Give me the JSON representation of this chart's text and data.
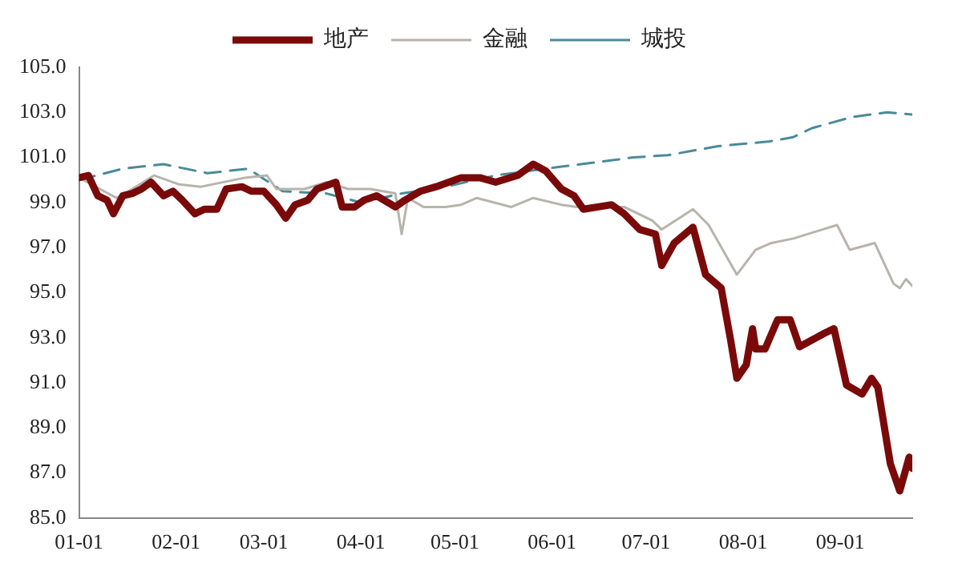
{
  "chart_data": {
    "type": "line",
    "legend": "top",
    "grid": false,
    "marker": "none",
    "xlim": [
      "--01-01",
      "--09-24"
    ],
    "xticks": [
      {
        "value": "--01-01",
        "label": "01-01"
      },
      {
        "value": "--02-01",
        "label": "02-01"
      },
      {
        "value": "--03-01",
        "label": "03-01"
      },
      {
        "value": "--04-01",
        "label": "04-01"
      },
      {
        "value": "--05-01",
        "label": "05-01"
      },
      {
        "value": "--06-01",
        "label": "06-01"
      },
      {
        "value": "--07-01",
        "label": "07-01"
      },
      {
        "value": "--08-01",
        "label": "08-01"
      },
      {
        "value": "--09-01",
        "label": "09-01"
      }
    ],
    "ylim": [
      85,
      105
    ],
    "yticks": [
      {
        "value": 85,
        "label": "85.0"
      },
      {
        "value": 87,
        "label": "87.0"
      },
      {
        "value": 89,
        "label": "89.0"
      },
      {
        "value": 91,
        "label": "91.0"
      },
      {
        "value": 93,
        "label": "93.0"
      },
      {
        "value": 95,
        "label": "95.0"
      },
      {
        "value": 97,
        "label": "97.0"
      },
      {
        "value": 99,
        "label": "99.0"
      },
      {
        "value": 101,
        "label": "101.0"
      },
      {
        "value": 103,
        "label": "103.0"
      },
      {
        "value": 105,
        "label": "105.0"
      }
    ],
    "series": [
      {
        "name": "地产",
        "color": "#7a0a0a",
        "line_style": "solid",
        "x": [
          "--01-01",
          "--01-04",
          "--01-07",
          "--01-10",
          "--01-12",
          "--01-15",
          "--01-18",
          "--01-21",
          "--01-24",
          "--01-28",
          "--01-31",
          "--02-03",
          "--02-07",
          "--02-10",
          "--02-14",
          "--02-17",
          "--02-22",
          "--02-25",
          "--03-01",
          "--03-05",
          "--03-08",
          "--03-11",
          "--03-15",
          "--03-18",
          "--03-22",
          "--03-24",
          "--03-26",
          "--03-30",
          "--04-02",
          "--04-06",
          "--04-12",
          "--04-15",
          "--04-20",
          "--04-25",
          "--05-01",
          "--05-03",
          "--05-09",
          "--05-14",
          "--05-21",
          "--05-26",
          "--05-30",
          "--06-04",
          "--06-08",
          "--06-11",
          "--06-20",
          "--06-24",
          "--06-29",
          "--07-04",
          "--07-06",
          "--07-10",
          "--07-16",
          "--07-20",
          "--07-25",
          "--07-28",
          "--07-30",
          "--08-02",
          "--08-04",
          "--08-05",
          "--08-08",
          "--08-12",
          "--08-16",
          "--08-19",
          "--08-23",
          "--08-27",
          "--08-30",
          "--09-03",
          "--09-08",
          "--09-11",
          "--09-13",
          "--09-17",
          "--09-20",
          "--09-23",
          "--09-24"
        ],
        "values": [
          100.1,
          100.2,
          99.3,
          99.1,
          98.5,
          99.3,
          99.4,
          99.6,
          99.9,
          99.3,
          99.5,
          99.1,
          98.5,
          98.7,
          98.7,
          99.6,
          99.7,
          99.5,
          99.5,
          98.9,
          98.3,
          98.9,
          99.1,
          99.6,
          99.8,
          99.9,
          98.8,
          98.8,
          99.1,
          99.3,
          98.8,
          99.1,
          99.5,
          99.7,
          100.0,
          100.1,
          100.1,
          99.9,
          100.2,
          100.7,
          100.4,
          99.6,
          99.3,
          98.7,
          98.9,
          98.5,
          97.8,
          97.6,
          96.2,
          97.2,
          97.9,
          95.8,
          95.2,
          92.9,
          91.2,
          91.8,
          93.4,
          92.5,
          92.5,
          93.8,
          93.8,
          92.6,
          92.9,
          93.2,
          93.4,
          90.9,
          90.5,
          91.2,
          90.8,
          87.4,
          86.2,
          87.7,
          87.2
        ]
      },
      {
        "name": "金融",
        "color": "#b8b4ac",
        "line_style": "solid",
        "x": [
          "--01-01",
          "--01-13",
          "--01-18",
          "--01-25",
          "--02-02",
          "--02-09",
          "--02-23",
          "--03-02",
          "--03-05",
          "--03-14",
          "--03-21",
          "--03-28",
          "--04-04",
          "--04-12",
          "--04-14",
          "--04-16",
          "--04-21",
          "--04-28",
          "--05-03",
          "--05-08",
          "--05-19",
          "--05-26",
          "--06-04",
          "--06-09",
          "--06-24",
          "--07-03",
          "--07-06",
          "--07-16",
          "--07-21",
          "--07-30",
          "--08-05",
          "--08-10",
          "--08-17",
          "--08-24",
          "--08-31",
          "--09-04",
          "--09-12",
          "--09-18",
          "--09-20",
          "--09-22",
          "--09-24"
        ],
        "values": [
          100.1,
          99.2,
          99.6,
          100.2,
          99.8,
          99.7,
          100.1,
          100.2,
          99.6,
          99.6,
          99.9,
          99.6,
          99.6,
          99.4,
          97.6,
          99.2,
          98.8,
          98.8,
          98.9,
          99.2,
          98.8,
          99.2,
          98.9,
          98.8,
          98.8,
          98.2,
          97.8,
          98.7,
          98.0,
          95.8,
          96.9,
          97.2,
          97.4,
          97.7,
          98.0,
          96.9,
          97.2,
          95.4,
          95.2,
          95.6,
          95.3
        ]
      },
      {
        "name": "城投",
        "color": "#4a8a9a",
        "line_style": "dashed",
        "x": [
          "--01-01",
          "--01-15",
          "--01-28",
          "--02-11",
          "--02-24",
          "--03-07",
          "--03-21",
          "--04-01",
          "--04-14",
          "--04-28",
          "--05-14",
          "--05-30",
          "--06-16",
          "--06-27",
          "--07-08",
          "--07-24",
          "--08-09",
          "--08-17",
          "--08-23",
          "--09-05",
          "--09-16",
          "--09-24"
        ],
        "values": [
          100.0,
          100.5,
          100.7,
          100.3,
          100.5,
          99.5,
          99.4,
          99.0,
          99.4,
          99.7,
          100.2,
          100.5,
          100.8,
          101.0,
          101.1,
          101.5,
          101.7,
          101.9,
          102.3,
          102.8,
          103.0,
          102.9
        ]
      }
    ]
  }
}
